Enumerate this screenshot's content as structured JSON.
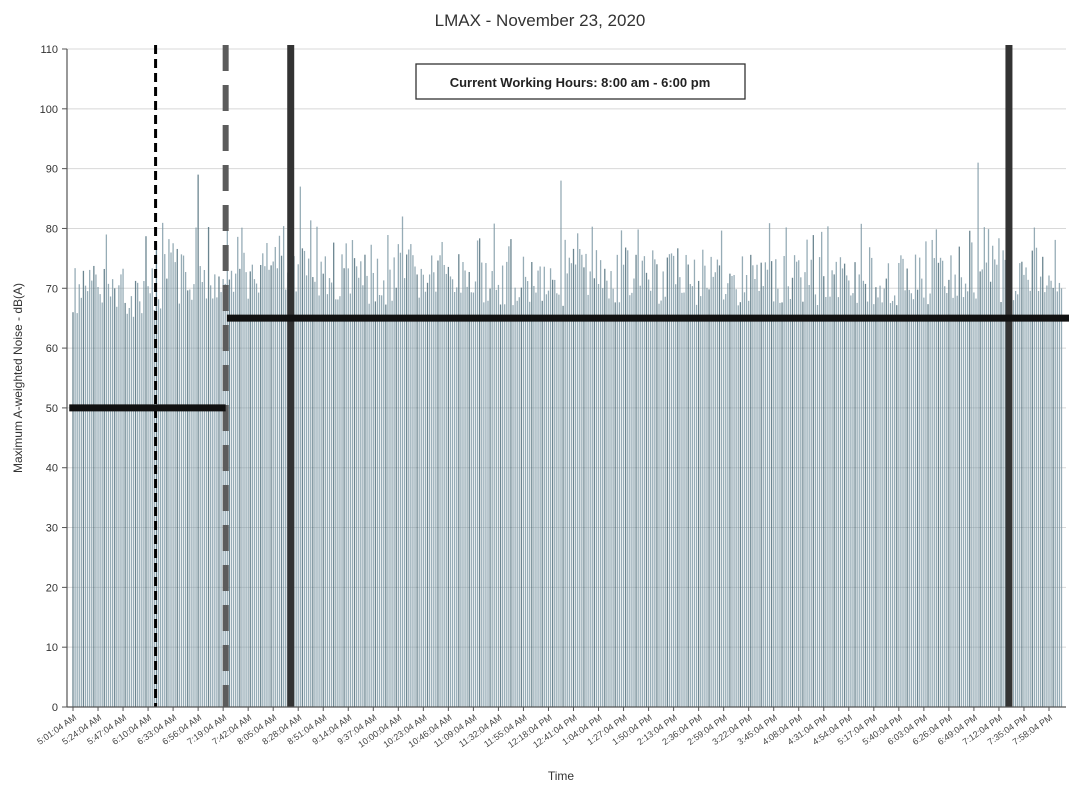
{
  "chart_data": {
    "type": "bar",
    "title": "LMAX - November 23, 2020",
    "xlabel": "Time",
    "ylabel": "Maximum A-weighted Noise - dB(A)",
    "ylim": [
      0,
      110
    ],
    "yticks": [
      0,
      10,
      20,
      30,
      40,
      50,
      60,
      70,
      80,
      90,
      100,
      110
    ],
    "grid": true,
    "annotation": "Current Working Hours: 8:00 am - 6:00 pm",
    "x_tick_labels": [
      "5:01:04 AM",
      "5:24:04 AM",
      "5:47:04 AM",
      "6:10:04 AM",
      "6:33:04 AM",
      "6:56:04 AM",
      "7:19:04 AM",
      "7:42:04 AM",
      "8:05:04 AM",
      "8:28:04 AM",
      "8:51:04 AM",
      "9:14:04 AM",
      "9:37:04 AM",
      "10:00:04 AM",
      "10:23:04 AM",
      "10:46:04 AM",
      "11:09:04 AM",
      "11:32:04 AM",
      "11:55:04 AM",
      "12:18:04 PM",
      "12:41:04 PM",
      "1:04:04 PM",
      "1:27:04 PM",
      "1:50:04 PM",
      "2:13:04 PM",
      "2:36:04 PM",
      "2:59:04 PM",
      "3:22:04 PM",
      "3:45:04 PM",
      "4:08:04 PM",
      "4:31:04 PM",
      "4:54:04 PM",
      "5:17:04 PM",
      "5:40:04 PM",
      "6:03:04 PM",
      "6:26:04 PM",
      "6:49:04 PM",
      "7:12:04 PM",
      "7:35:04 PM",
      "7:58:04 PM"
    ],
    "bar_profile": {
      "label_spacing_minutes": 23,
      "points_per_label_interval": 12,
      "segments": [
        {
          "until_label_index": 3.5,
          "typical_max": 74
        },
        {
          "until_label_index": 6.5,
          "typical_max": 76
        },
        {
          "until_label_index": 10,
          "typical_max": 77
        },
        {
          "until_label_index": 40,
          "typical_max": 76
        }
      ],
      "spikes": [
        {
          "at_label_index": 5.0,
          "value": 89
        },
        {
          "at_label_index": 9.1,
          "value": 87
        },
        {
          "at_label_index": 13.2,
          "value": 82
        },
        {
          "at_label_index": 19.5,
          "value": 88
        },
        {
          "at_label_index": 36.2,
          "value": 91
        }
      ]
    },
    "reference_lines": [
      {
        "kind": "horizontal",
        "value": 50,
        "from_label_index": -0.15,
        "to_label_index": 6.1,
        "color": "#111111"
      },
      {
        "kind": "horizontal",
        "value": 65,
        "from_label_index": 6.15,
        "to_label_index": 40,
        "color": "#111111"
      }
    ],
    "vertical_markers": [
      {
        "at_label_index": 3.3,
        "style": "dashed",
        "color": "#000000"
      },
      {
        "at_label_index": 6.1,
        "style": "dashed-wide",
        "color": "#5c5c5c"
      },
      {
        "at_label_index": 8.7,
        "style": "solid",
        "color": "#333333"
      },
      {
        "at_label_index": 37.4,
        "style": "solid",
        "color": "#333333"
      }
    ],
    "colors": {
      "bars": "#7f9aa6",
      "bars_dark": "#4a6a78",
      "grid": "#d8d8d8",
      "axis": "#555555",
      "text": "#222222"
    }
  }
}
